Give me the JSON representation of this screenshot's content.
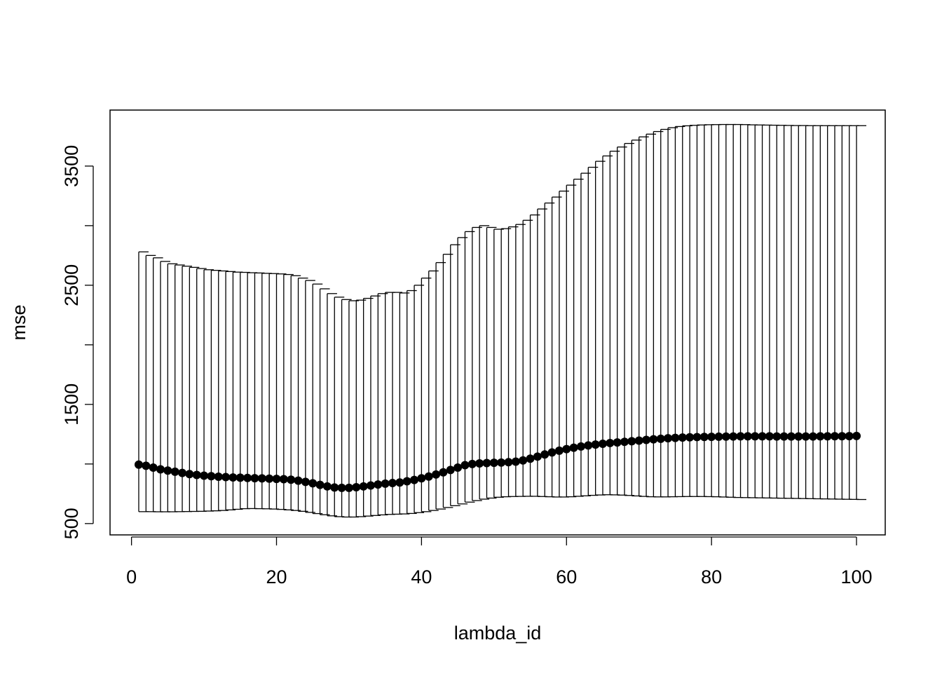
{
  "chart_data": {
    "type": "scatter",
    "title": "",
    "xlabel": "lambda_id",
    "ylabel": "mse",
    "xlim": [
      -2.96,
      103.96
    ],
    "ylim": [
      405,
      3970
    ],
    "x_ticks": [
      0,
      20,
      40,
      60,
      80,
      100
    ],
    "y_ticks": [
      500,
      1000,
      1500,
      2000,
      2500,
      3000,
      3500
    ],
    "y_tick_labels": [
      "500",
      "",
      "1500",
      "",
      "2500",
      "",
      "3500"
    ],
    "grid": false,
    "legend": "none",
    "series": [
      {
        "x": [
          1,
          2,
          3,
          4,
          5,
          6,
          7,
          8,
          9,
          10,
          11,
          12,
          13,
          14,
          15,
          16,
          17,
          18,
          19,
          20,
          21,
          22,
          23,
          24,
          25,
          26,
          27,
          28,
          29,
          30,
          31,
          32,
          33,
          34,
          35,
          36,
          37,
          38,
          39,
          40,
          41,
          42,
          43,
          44,
          45,
          46,
          47,
          48,
          49,
          50,
          51,
          52,
          53,
          54,
          55,
          56,
          57,
          58,
          59,
          60,
          61,
          62,
          63,
          64,
          65,
          66,
          67,
          68,
          69,
          70,
          71,
          72,
          73,
          74,
          75,
          76,
          77,
          78,
          79,
          80,
          81,
          82,
          83,
          84,
          85,
          86,
          87,
          88,
          89,
          90,
          91,
          92,
          93,
          94,
          95,
          96,
          97,
          98,
          99,
          100
        ],
        "mean": [
          995,
          985,
          970,
          955,
          945,
          935,
          925,
          915,
          908,
          902,
          898,
          893,
          890,
          887,
          885,
          883,
          881,
          879,
          877,
          875,
          873,
          868,
          860,
          850,
          838,
          825,
          812,
          803,
          800,
          800,
          805,
          812,
          820,
          828,
          835,
          840,
          845,
          855,
          866,
          880,
          895,
          912,
          930,
          950,
          970,
          990,
          1000,
          1005,
          1008,
          1010,
          1012,
          1015,
          1020,
          1030,
          1045,
          1062,
          1080,
          1097,
          1112,
          1125,
          1137,
          1147,
          1156,
          1163,
          1170,
          1176,
          1181,
          1186,
          1191,
          1196,
          1202,
          1207,
          1212,
          1216,
          1219,
          1222,
          1224,
          1226,
          1227,
          1228,
          1229,
          1230,
          1231,
          1232,
          1232,
          1232,
          1232,
          1232,
          1231,
          1231,
          1231,
          1231,
          1231,
          1231,
          1232,
          1232,
          1233,
          1233,
          1234,
          1235
        ],
        "lower": [
          600,
          600,
          599,
          599,
          599,
          600,
          601,
          602,
          603,
          605,
          607,
          610,
          615,
          620,
          625,
          626,
          625,
          624,
          622,
          619,
          615,
          610,
          603,
          594,
          584,
          574,
          565,
          558,
          555,
          555,
          558,
          563,
          568,
          573,
          577,
          579,
          581,
          585,
          592,
          600,
          610,
          622,
          635,
          650,
          665,
          680,
          693,
          705,
          714,
          721,
          725,
          727,
          728,
          729,
          729,
          727,
          725,
          723,
          723,
          725,
          729,
          733,
          737,
          740,
          742,
          741,
          739,
          736,
          732,
          728,
          725,
          724,
          724,
          725,
          726,
          727,
          727,
          727,
          726,
          725,
          723,
          721,
          719,
          718,
          717,
          716,
          715,
          714,
          713,
          712,
          711,
          710,
          709,
          708,
          707,
          706,
          705,
          704,
          703,
          702
        ],
        "upper": [
          2780,
          2750,
          2730,
          2700,
          2680,
          2670,
          2660,
          2650,
          2640,
          2630,
          2625,
          2620,
          2615,
          2610,
          2608,
          2605,
          2603,
          2600,
          2598,
          2595,
          2590,
          2580,
          2560,
          2540,
          2510,
          2470,
          2430,
          2400,
          2380,
          2370,
          2375,
          2390,
          2410,
          2430,
          2440,
          2440,
          2435,
          2455,
          2500,
          2560,
          2620,
          2690,
          2760,
          2840,
          2900,
          2950,
          2985,
          3000,
          2985,
          2970,
          2975,
          2990,
          3010,
          3045,
          3090,
          3140,
          3190,
          3240,
          3290,
          3340,
          3390,
          3440,
          3490,
          3540,
          3585,
          3625,
          3660,
          3690,
          3718,
          3745,
          3768,
          3790,
          3808,
          3822,
          3832,
          3838,
          3842,
          3845,
          3847,
          3848,
          3849,
          3849,
          3849,
          3848,
          3846,
          3845,
          3844,
          3843,
          3842,
          3841,
          3840,
          3840,
          3839,
          3839,
          3839,
          3839,
          3839,
          3839,
          3839,
          3839
        ]
      }
    ]
  }
}
